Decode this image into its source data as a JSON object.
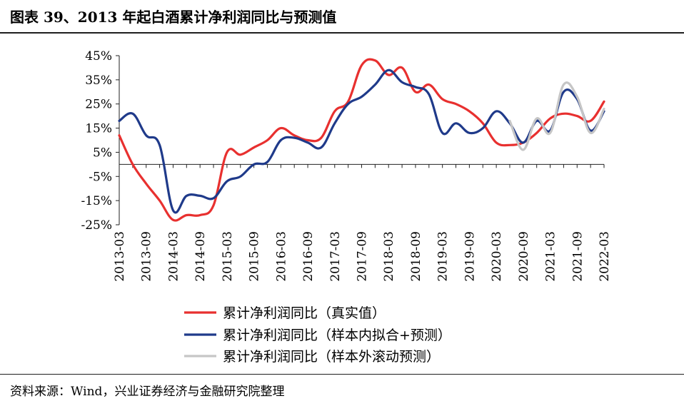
{
  "figure": {
    "title": "图表 39、2013 年起白酒累计净利润同比与预测值",
    "source": "资料来源：Wind，兴业证券经济与金融研究院整理"
  },
  "chart_data": {
    "type": "line",
    "title": "",
    "xlabel": "",
    "ylabel": "",
    "ylim": [
      -25,
      45
    ],
    "yticks": [
      -25,
      -15,
      -5,
      5,
      15,
      25,
      35,
      45
    ],
    "ytick_labels": [
      "-25%",
      "-15%",
      "-5%",
      "5%",
      "15%",
      "25%",
      "35%",
      "45%"
    ],
    "xrange": [
      "2013-03",
      "2022-03"
    ],
    "xtick_labels": [
      "2013-03",
      "2013-09",
      "2014-03",
      "2014-09",
      "2015-03",
      "2015-09",
      "2016-03",
      "2016-09",
      "2017-03",
      "2017-09",
      "2018-03",
      "2018-09",
      "2019-03",
      "2019-09",
      "2020-03",
      "2020-09",
      "2021-03",
      "2021-09",
      "2022-03"
    ],
    "grid": false,
    "legend_position": "bottom",
    "series": [
      {
        "name": "累计净利润同比（真实值）",
        "color": "#e8302f",
        "x": [
          "2013-03",
          "2013-06",
          "2013-09",
          "2013-12",
          "2014-03",
          "2014-06",
          "2014-09",
          "2014-12",
          "2015-03",
          "2015-06",
          "2015-09",
          "2015-12",
          "2016-03",
          "2016-06",
          "2016-09",
          "2016-12",
          "2017-03",
          "2017-06",
          "2017-09",
          "2017-12",
          "2018-03",
          "2018-06",
          "2018-09",
          "2018-12",
          "2019-03",
          "2019-06",
          "2019-09",
          "2019-12",
          "2020-03",
          "2020-06",
          "2020-09",
          "2020-12",
          "2021-03",
          "2021-06",
          "2021-09",
          "2021-12",
          "2022-03"
        ],
        "values": [
          12,
          0,
          -8,
          -15,
          -23,
          -21,
          -21,
          -17,
          5,
          4,
          7,
          10,
          15,
          12,
          10,
          11,
          22,
          26,
          41,
          43,
          37,
          40,
          30,
          33,
          27,
          25,
          22,
          17,
          9,
          8,
          9,
          13,
          19,
          21,
          20,
          18,
          26
        ]
      },
      {
        "name": "累计净利润同比（样本内拟合+预测）",
        "color": "#1f3a8a",
        "x": [
          "2013-03",
          "2013-06",
          "2013-09",
          "2013-12",
          "2014-03",
          "2014-06",
          "2014-09",
          "2014-12",
          "2015-03",
          "2015-06",
          "2015-09",
          "2015-12",
          "2016-03",
          "2016-06",
          "2016-09",
          "2016-12",
          "2017-03",
          "2017-06",
          "2017-09",
          "2017-12",
          "2018-03",
          "2018-06",
          "2018-09",
          "2018-12",
          "2019-03",
          "2019-06",
          "2019-09",
          "2019-12",
          "2020-03",
          "2020-06",
          "2020-09",
          "2020-12",
          "2021-03",
          "2021-06",
          "2021-09",
          "2021-12",
          "2022-03"
        ],
        "values": [
          18,
          21,
          12,
          8,
          -19,
          -13,
          -13,
          -14,
          -7,
          -5,
          0,
          1,
          10,
          11,
          9,
          7,
          17,
          25,
          28,
          33,
          39,
          34,
          32,
          29,
          13,
          17,
          13,
          15,
          22,
          17,
          9,
          18,
          14,
          30,
          27,
          14,
          22
        ]
      },
      {
        "name": "累计净利润同比（样本外滚动预测）",
        "color": "#c6c6c6",
        "x": [
          "2020-06",
          "2020-09",
          "2020-12",
          "2021-03",
          "2021-06",
          "2021-09",
          "2021-12",
          "2022-03"
        ],
        "values": [
          18,
          6,
          19,
          13,
          33,
          28,
          13,
          23
        ]
      }
    ]
  }
}
